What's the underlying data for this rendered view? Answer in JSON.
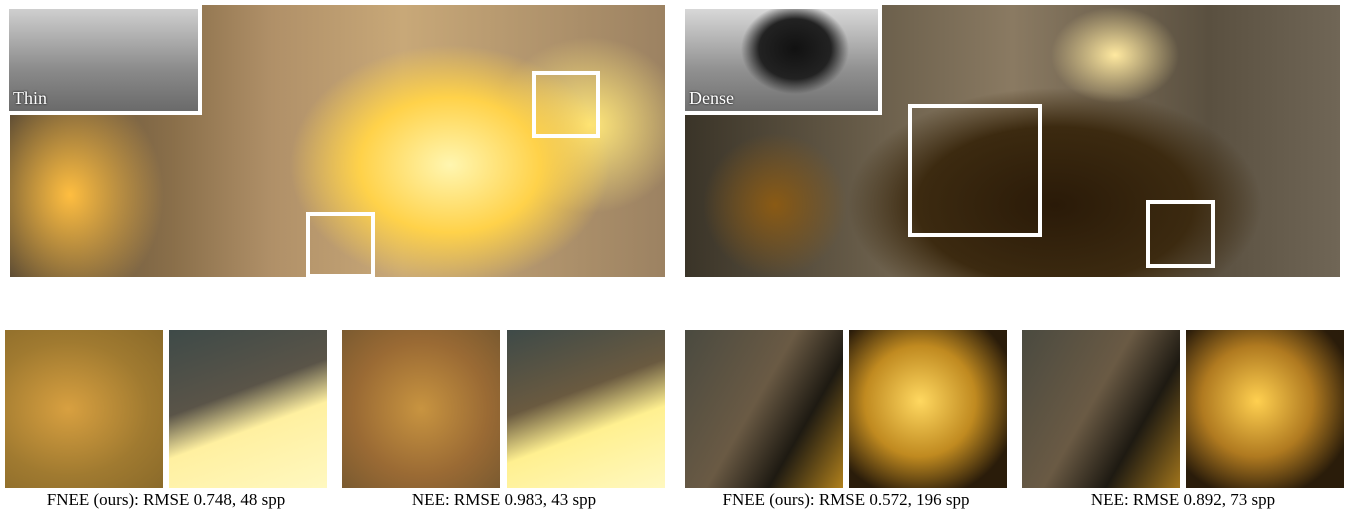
{
  "panels": [
    {
      "inset_label": "Thin"
    },
    {
      "inset_label": "Dense"
    }
  ],
  "captions": [
    "FNEE (ours): RMSE 0.748, 48 spp",
    "NEE: RMSE 0.983, 43 spp",
    "FNEE (ours): RMSE 0.572, 196 spp",
    "NEE: RMSE 0.892, 73 spp"
  ]
}
